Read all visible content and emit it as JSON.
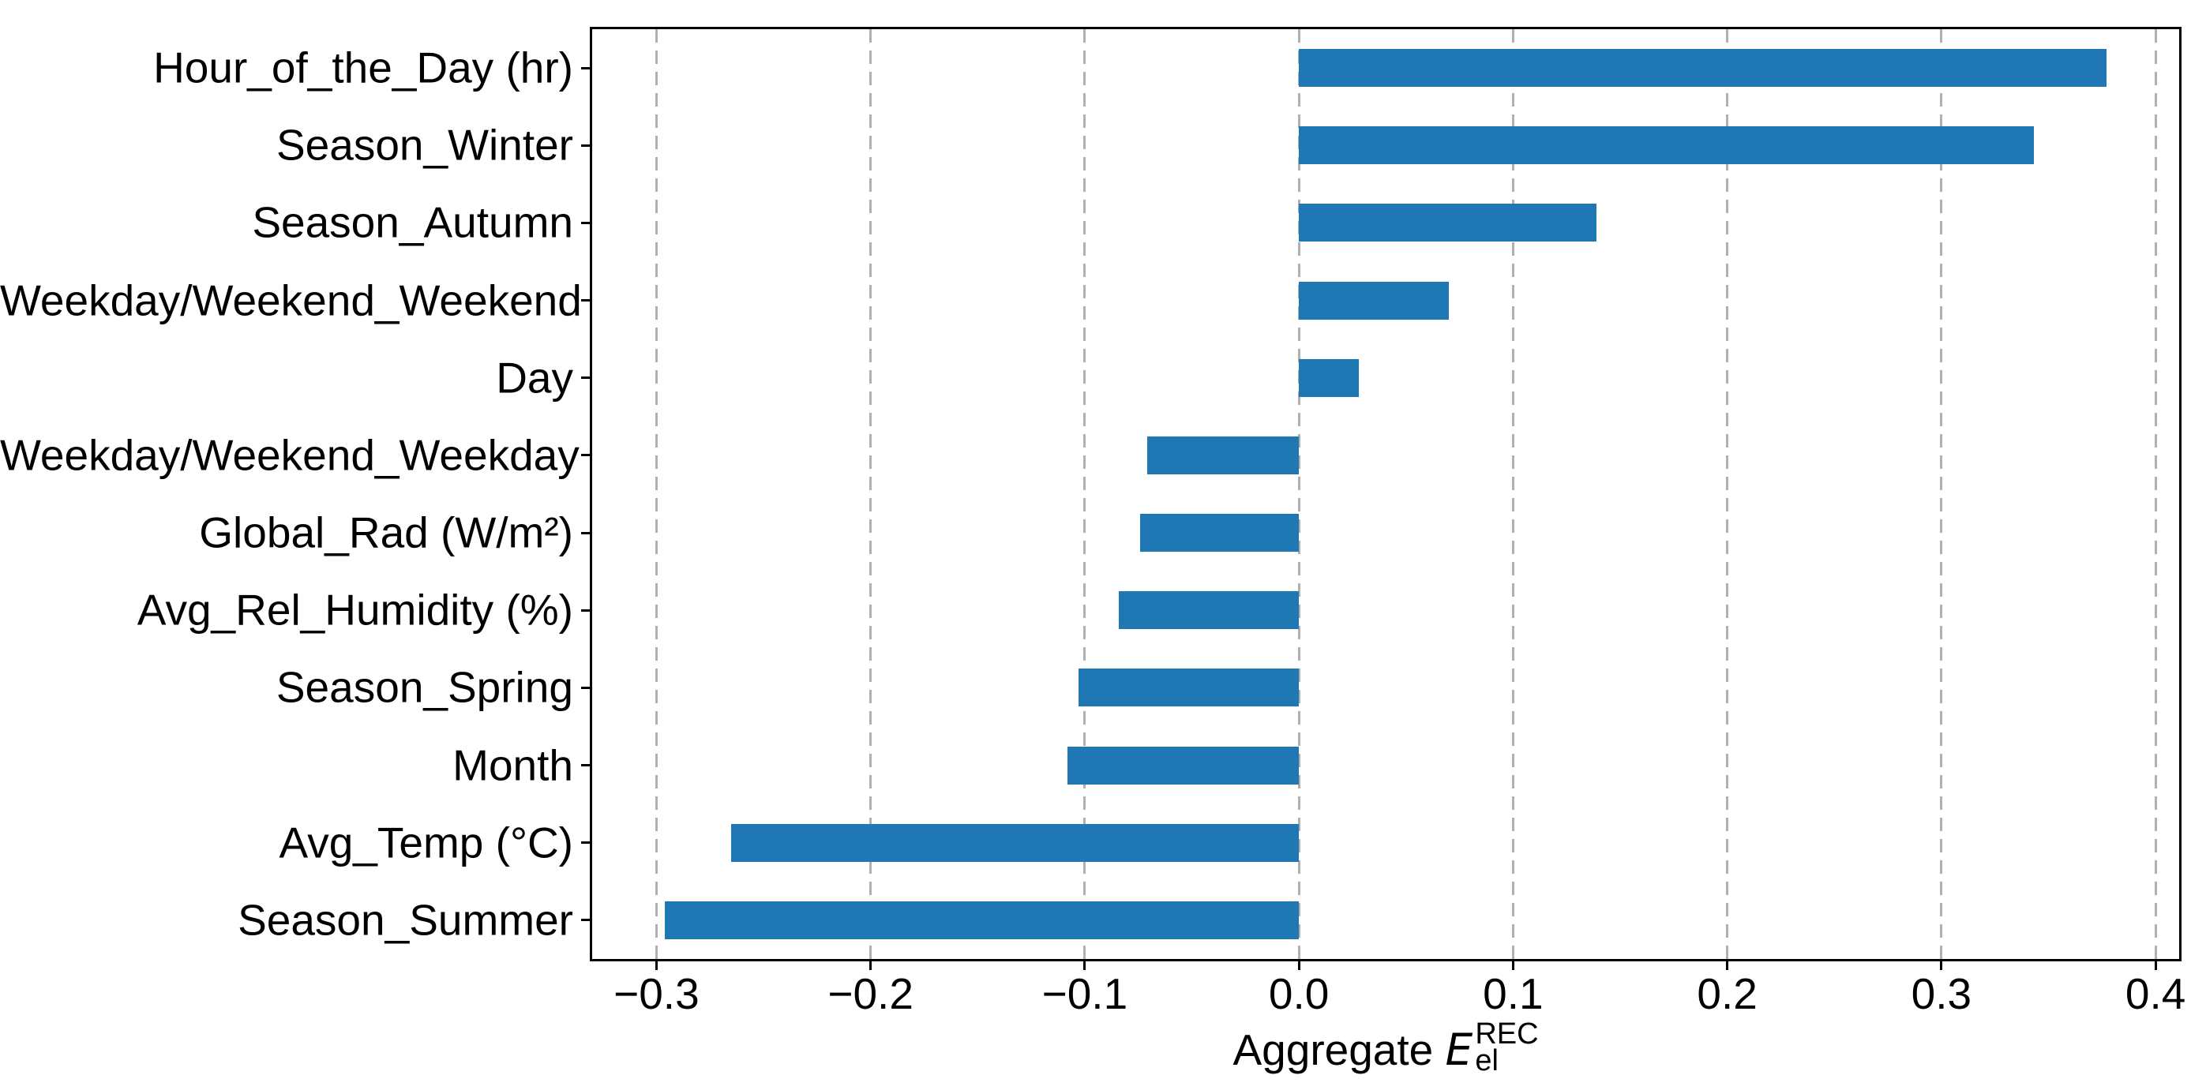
{
  "figure": {
    "background": "#ffffff"
  },
  "chart_data": {
    "type": "bar",
    "orientation": "horizontal",
    "title": "",
    "ylabel": "",
    "xlabel": "Aggregate E_el^REC",
    "xlabel_parts": {
      "prefix": "Aggregate ",
      "symbol": "E",
      "superscript": "REC",
      "subscript": "el"
    },
    "categories": [
      "Hour_of_the_Day (hr)",
      "Season_Winter",
      "Season_Autumn",
      "Weekday/Weekend_Weekend",
      "Day",
      "Weekday/Weekend_Weekday",
      "Global_Rad (W/m²)",
      "Avg_Rel_Humidity (%)",
      "Season_Spring",
      "Month",
      "Avg_Temp (°C)",
      "Season_Summer"
    ],
    "values": [
      0.377,
      0.343,
      0.139,
      0.07,
      0.028,
      -0.071,
      -0.074,
      -0.084,
      -0.103,
      -0.108,
      -0.265,
      -0.296
    ],
    "x_ticks": [
      -0.3,
      -0.2,
      -0.1,
      0.0,
      0.1,
      0.2,
      0.3,
      0.4
    ],
    "x_tick_labels": [
      "−0.3",
      "−0.2",
      "−0.1",
      "0.0",
      "0.1",
      "0.2",
      "0.3",
      "0.4"
    ],
    "xlim": [
      -0.33,
      0.411
    ],
    "grid": {
      "axis": "x",
      "style": "dashed",
      "color": "#b0b0b0"
    },
    "legend": "none",
    "bar_color": "#1f77b4",
    "axis_color": "#000000"
  }
}
